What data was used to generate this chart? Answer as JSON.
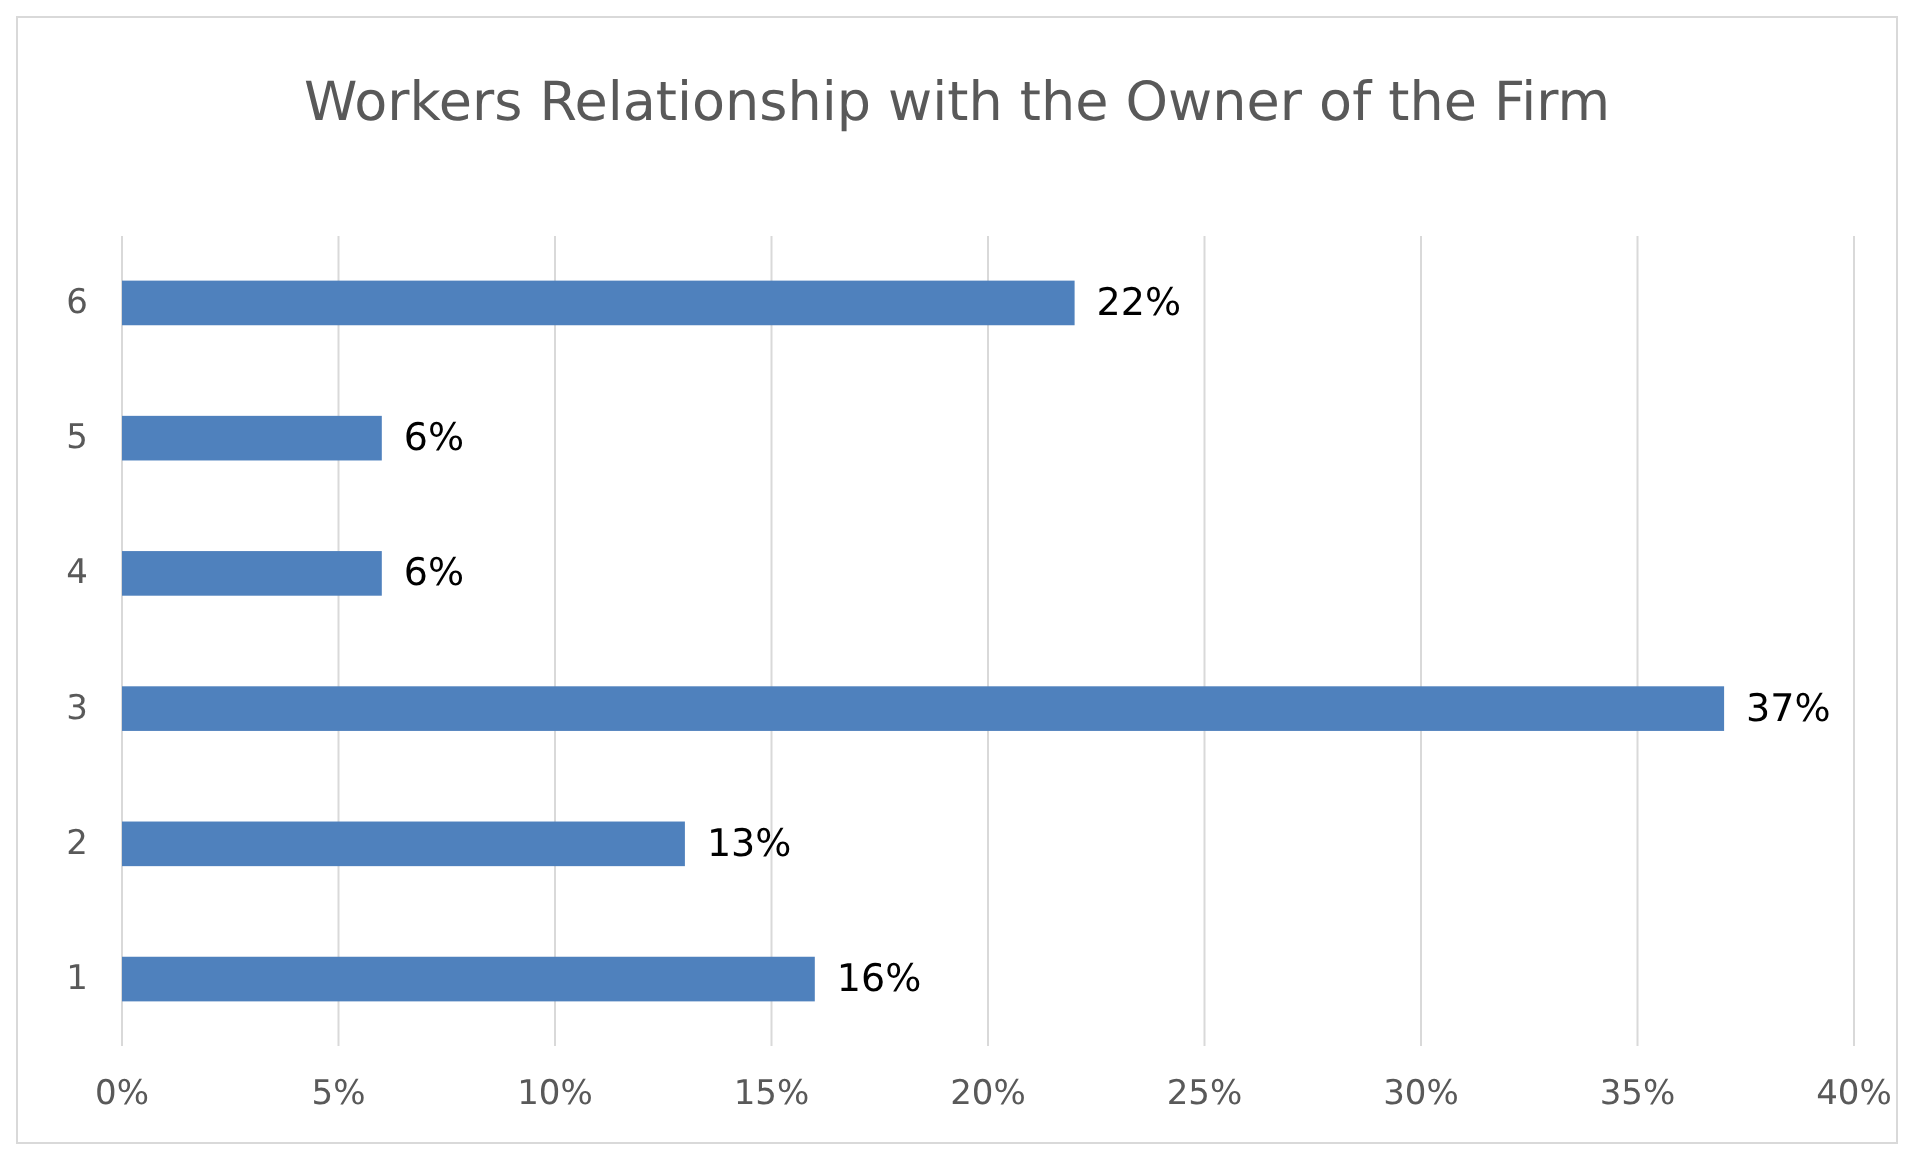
{
  "chart_data": {
    "type": "bar",
    "orientation": "horizontal",
    "title": "Workers Relationship with the Owner of the Firm",
    "categories": [
      "6",
      "5",
      "4",
      "3",
      "2",
      "1"
    ],
    "values": [
      22,
      6,
      6,
      37,
      13,
      16
    ],
    "value_labels": [
      "22%",
      "6%",
      "6%",
      "37%",
      "13%",
      "16%"
    ],
    "color": "#4f81bd",
    "xlim": [
      0,
      40
    ],
    "xticks": [
      {
        "value": 0,
        "label": "0%"
      },
      {
        "value": 5,
        "label": "5%"
      },
      {
        "value": 10,
        "label": "10%"
      },
      {
        "value": 15,
        "label": "15%"
      },
      {
        "value": 20,
        "label": "20%"
      },
      {
        "value": 25,
        "label": "25%"
      },
      {
        "value": 30,
        "label": "30%"
      },
      {
        "value": 35,
        "label": "35%"
      },
      {
        "value": 40,
        "label": "40%"
      }
    ],
    "grid": "x"
  }
}
